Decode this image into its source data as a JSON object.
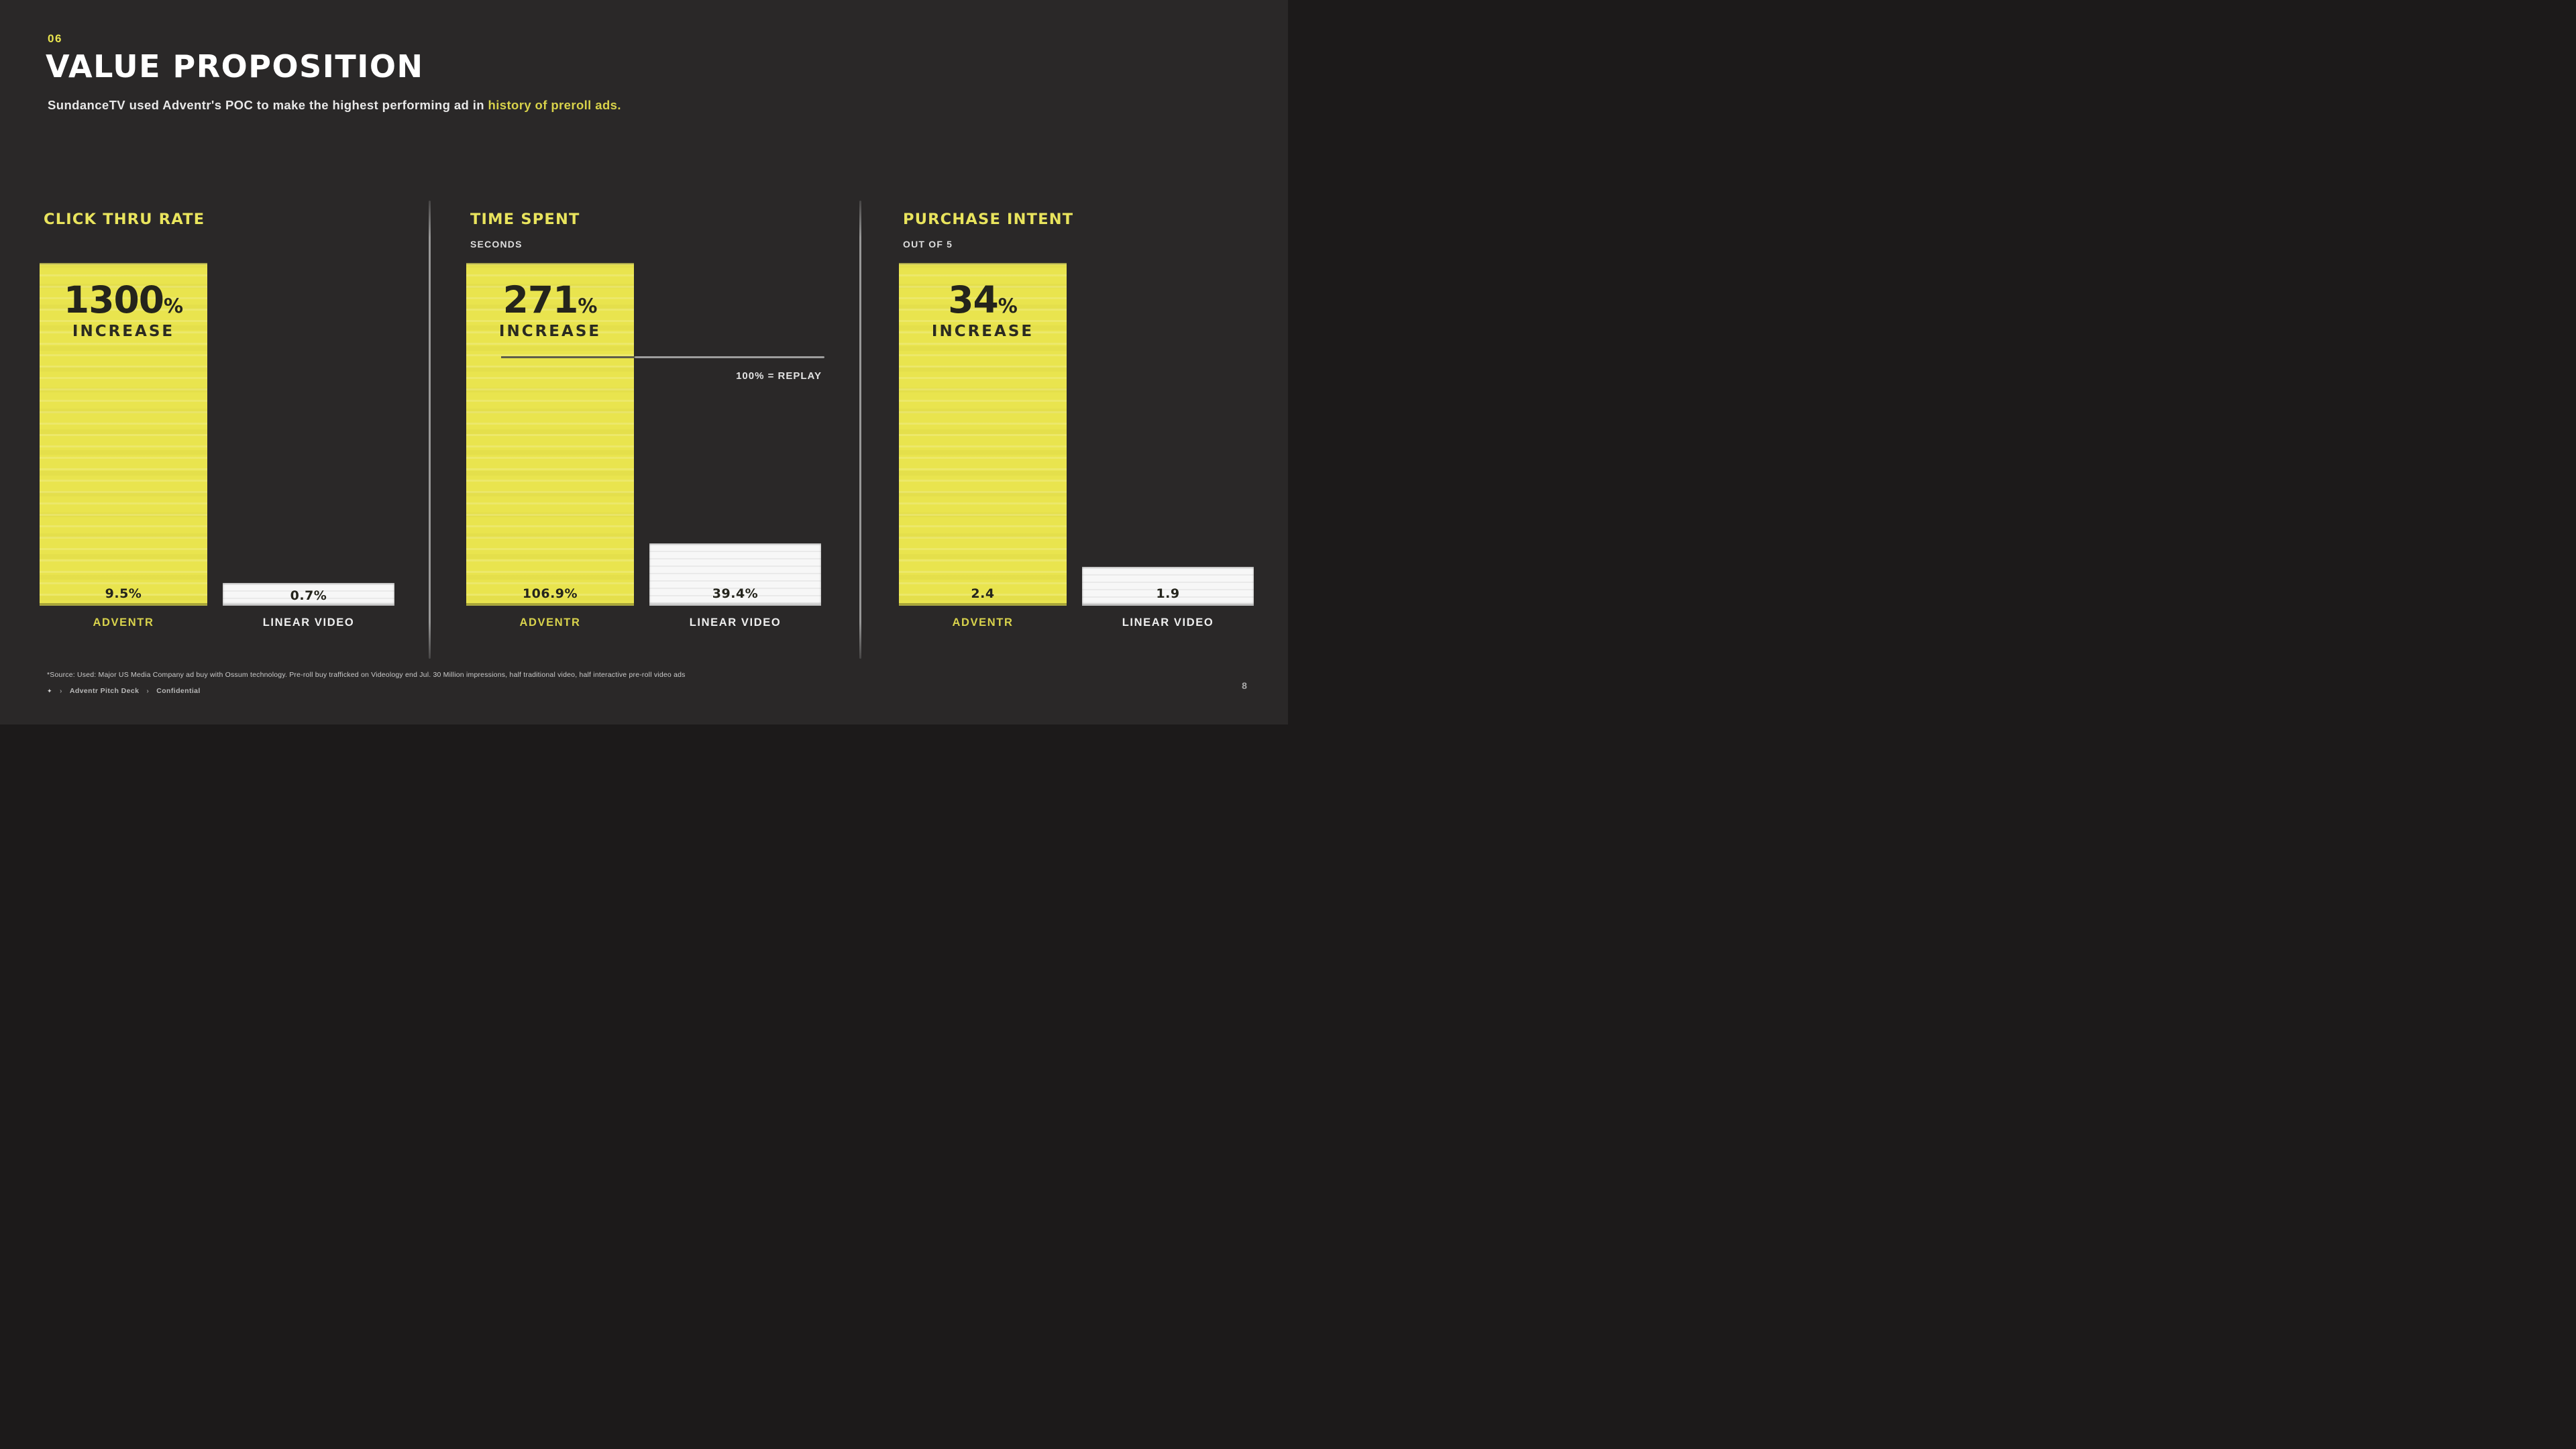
{
  "page": {
    "kicker": "06",
    "title": "VALUE PROPOSITION",
    "subtitle_plain": "SundanceTV used Adventr's POC to make the highest performing ad in ",
    "subtitle_highlight": "history of preroll ads.",
    "footnote": "*Source: Used: Major US Media Company ad buy with Ossum technology. Pre-roll buy trafficked on Videology end Jul. 30 Million impressions, half traditional video, half interactive pre-roll video ads",
    "footer": {
      "mark": "✦",
      "deck_name": "Adventr Pitch Deck",
      "separator": "›",
      "confidential": "Confidential"
    },
    "page_number": "8"
  },
  "colors": {
    "background": "#2a2828",
    "accent_yellow": "#e9e44e",
    "bar_white": "#f7f7f7",
    "dark_text_on_yellow": "#24241c"
  },
  "charts": [
    {
      "heading": "CLICK THRU RATE",
      "unit": "",
      "big_value": "1300",
      "big_suffix": "%",
      "big_caption": "INCREASE",
      "bars": [
        {
          "label": "ADVENTR",
          "value_label": "9.5%"
        },
        {
          "label": "LINEAR VIDEO",
          "value_label": "0.7%"
        }
      ]
    },
    {
      "heading": "TIME SPENT",
      "unit": "SECONDS",
      "big_value": "271",
      "big_suffix": "%",
      "big_caption": "INCREASE",
      "annotation": "100% = REPLAY",
      "bars": [
        {
          "label": "ADVENTR",
          "value_label": "106.9%"
        },
        {
          "label": "LINEAR VIDEO",
          "value_label": "39.4%"
        }
      ]
    },
    {
      "heading": "PURCHASE INTENT",
      "unit": "OUT OF 5",
      "big_value": "34",
      "big_suffix": "%",
      "big_caption": "INCREASE",
      "bars": [
        {
          "label": "ADVENTR",
          "value_label": "2.4"
        },
        {
          "label": "LINEAR VIDEO",
          "value_label": "1.9"
        }
      ]
    }
  ],
  "chart_data": [
    {
      "type": "bar",
      "title": "CLICK THRU RATE",
      "categories": [
        "ADVENTR",
        "LINEAR VIDEO"
      ],
      "values": [
        9.5,
        0.7
      ],
      "value_labels": [
        "9.5%",
        "0.7%"
      ],
      "annotations": [
        "1300% INCREASE"
      ],
      "legend_position": "none",
      "grid": false
    },
    {
      "type": "bar",
      "title": "TIME SPENT",
      "ylabel": "SECONDS",
      "categories": [
        "ADVENTR",
        "LINEAR VIDEO"
      ],
      "values": [
        106.9,
        39.4
      ],
      "value_labels": [
        "106.9%",
        "39.4%"
      ],
      "annotations": [
        "271% INCREASE",
        "100% = REPLAY reference line"
      ],
      "reference_line": 100,
      "legend_position": "none",
      "grid": false
    },
    {
      "type": "bar",
      "title": "PURCHASE INTENT",
      "ylabel": "OUT OF 5",
      "categories": [
        "ADVENTR",
        "LINEAR VIDEO"
      ],
      "values": [
        2.4,
        1.9
      ],
      "value_labels": [
        "2.4",
        "1.9"
      ],
      "annotations": [
        "34% INCREASE"
      ],
      "ylim": [
        0,
        5
      ],
      "legend_position": "none",
      "grid": false
    }
  ]
}
